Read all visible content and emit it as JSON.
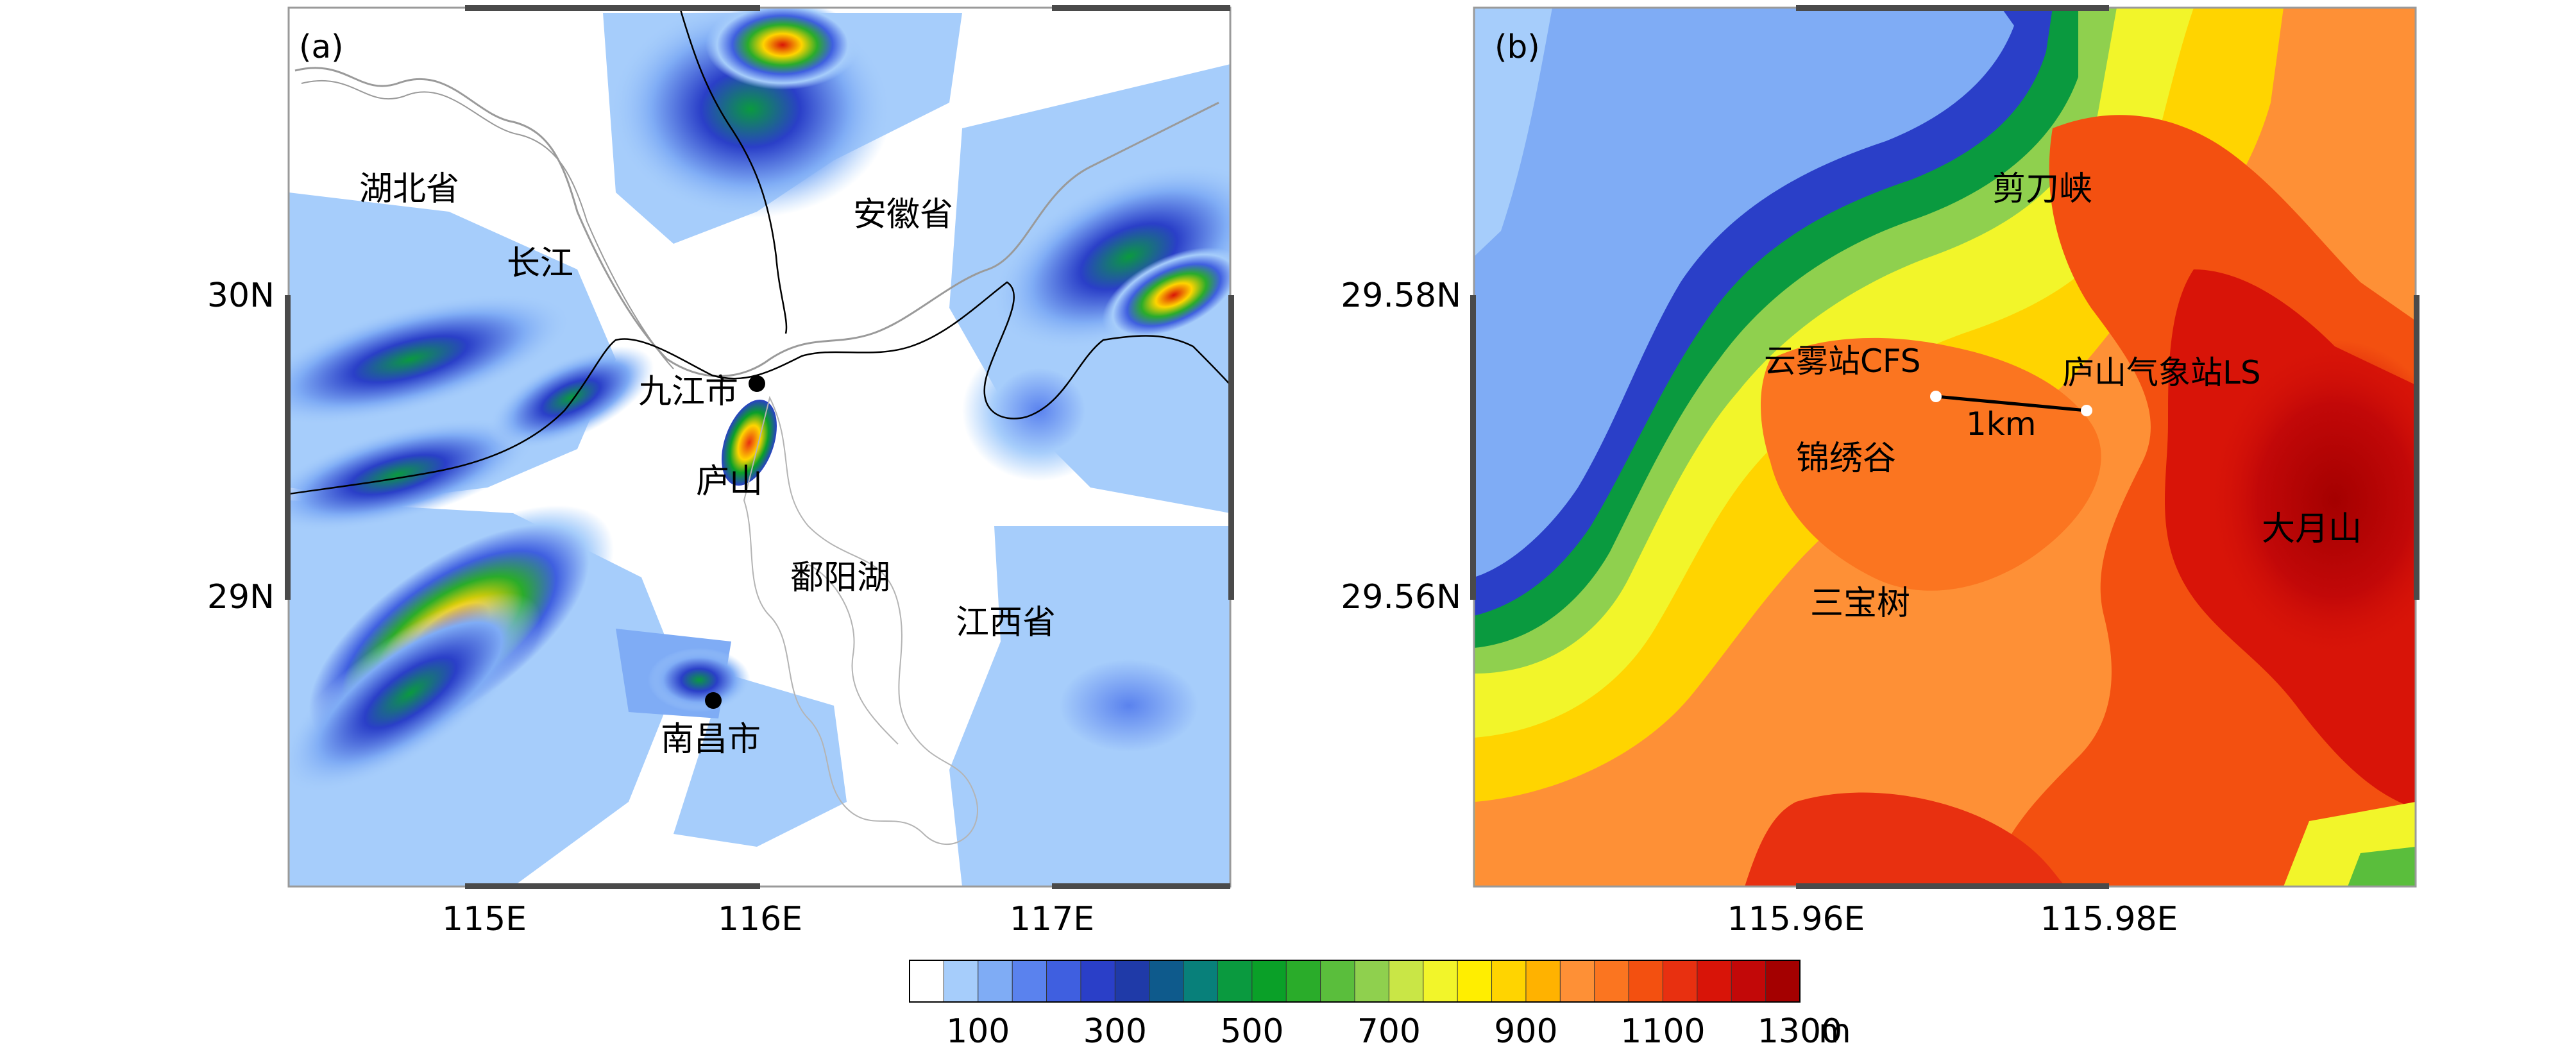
{
  "panel_a": {
    "tag": "(a)",
    "place_labels": {
      "hubei": "湖北省",
      "anhui": "安徽省",
      "changjiang": "长江",
      "jiujiang": "九江市",
      "lushan": "庐山",
      "poyang": "鄱阳湖",
      "jiangxi": "江西省",
      "nanchang": "南昌市"
    },
    "x_ticks": [
      "115E",
      "116E",
      "117E"
    ],
    "y_ticks": [
      "30N",
      "29N"
    ]
  },
  "panel_b": {
    "tag": "(b)",
    "place_labels": {
      "jiandaoxia": "剪刀峡",
      "cfs": "云雾站CFS",
      "ls": "庐山气象站LS",
      "scale": "1km",
      "jinxiugu": "锦绣谷",
      "dayueshan": "大月山",
      "sanbaoshu": "三宝树"
    },
    "x_ticks": [
      "115.96E",
      "115.98E"
    ],
    "y_ticks": [
      "29.58N",
      "29.56N"
    ]
  },
  "colorbar": {
    "colors": [
      "#ffffff",
      "#a6cdfb",
      "#7facf5",
      "#5a82ee",
      "#3f5fe0",
      "#2a3fc8",
      "#1f3aa8",
      "#0e5a8c",
      "#08807a",
      "#0a9a3f",
      "#0aa028",
      "#2aac2a",
      "#5abe3c",
      "#8fd04e",
      "#c9e646",
      "#f2f52a",
      "#ffee00",
      "#ffd400",
      "#ffb200",
      "#fe9036",
      "#fb7520",
      "#f35010",
      "#e83010",
      "#d81408",
      "#c20808",
      "#a40000"
    ],
    "tick_labels": [
      "100",
      "300",
      "500",
      "700",
      "900",
      "1100",
      "1300"
    ],
    "unit": "m"
  }
}
